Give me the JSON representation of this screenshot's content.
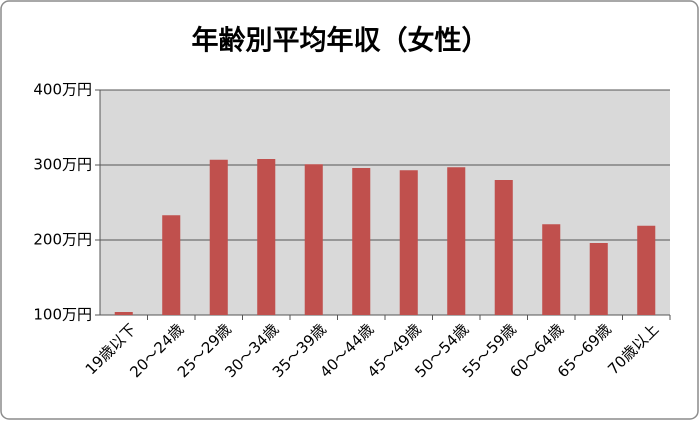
{
  "chart_data": {
    "type": "bar",
    "title": "年齢別平均年収（女性）",
    "categories": [
      "19歳以下",
      "20～24歳",
      "25～29歳",
      "30～34歳",
      "35～39歳",
      "40～44歳",
      "45～49歳",
      "50～54歳",
      "55～59歳",
      "60～64歳",
      "65～69歳",
      "70歳以上"
    ],
    "values": [
      104,
      233,
      307,
      308,
      301,
      296,
      293,
      297,
      280,
      221,
      196,
      219
    ],
    "color": "#c0504d",
    "ylim": [
      100,
      400
    ],
    "yticks": [
      {
        "value": 100,
        "label": "100万円"
      },
      {
        "value": 200,
        "label": "200万円"
      },
      {
        "value": 300,
        "label": "300万円"
      },
      {
        "value": 400,
        "label": "400万円"
      }
    ],
    "grid": true
  }
}
